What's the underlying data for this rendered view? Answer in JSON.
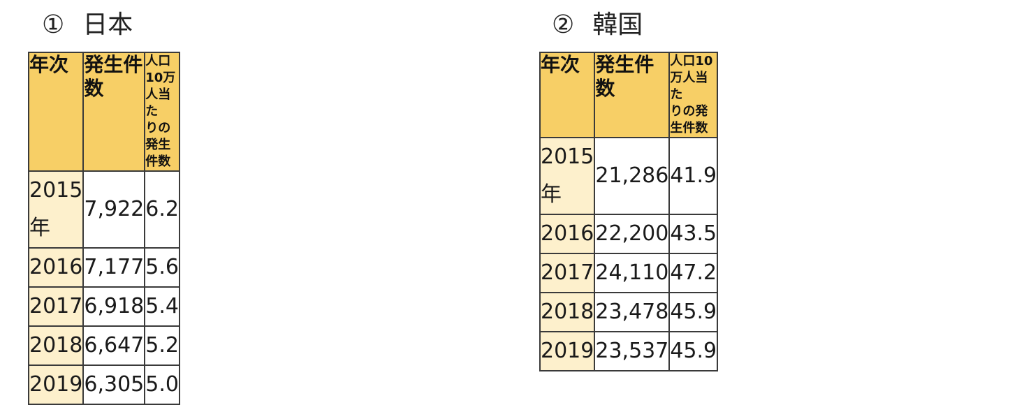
{
  "tables": [
    {
      "marker": "①",
      "country": "日本",
      "headers": {
        "year": "年次",
        "count": "発生件数",
        "rate_line1": "人口10万人当た",
        "rate_line2": "りの発生件数"
      },
      "rows": [
        {
          "year": "2015年",
          "count": "7,922",
          "rate": "6.2"
        },
        {
          "year": "2016",
          "count": "7,177",
          "rate": "5.6"
        },
        {
          "year": "2017",
          "count": "6,918",
          "rate": "5.4"
        },
        {
          "year": "2018",
          "count": "6,647",
          "rate": "5.2"
        },
        {
          "year": "2019",
          "count": "6,305",
          "rate": "5.0"
        }
      ]
    },
    {
      "marker": "②",
      "country": "韓国",
      "headers": {
        "year": "年次",
        "count": "発生件数",
        "rate_line1": "人口10万人当た",
        "rate_line2": "りの発生件数"
      },
      "rows": [
        {
          "year": "2015年",
          "count": "21,286",
          "rate": "41.9"
        },
        {
          "year": "2016",
          "count": "22,200",
          "rate": "43.5"
        },
        {
          "year": "2017",
          "count": "24,110",
          "rate": "47.2"
        },
        {
          "year": "2018",
          "count": "23,478",
          "rate": "45.9"
        },
        {
          "year": "2019",
          "count": "23,537",
          "rate": "45.9"
        }
      ]
    }
  ],
  "colors": {
    "header_bg": "#f7cf66",
    "year_bg": "#fdf0cc",
    "border": "#3a3a3a"
  }
}
